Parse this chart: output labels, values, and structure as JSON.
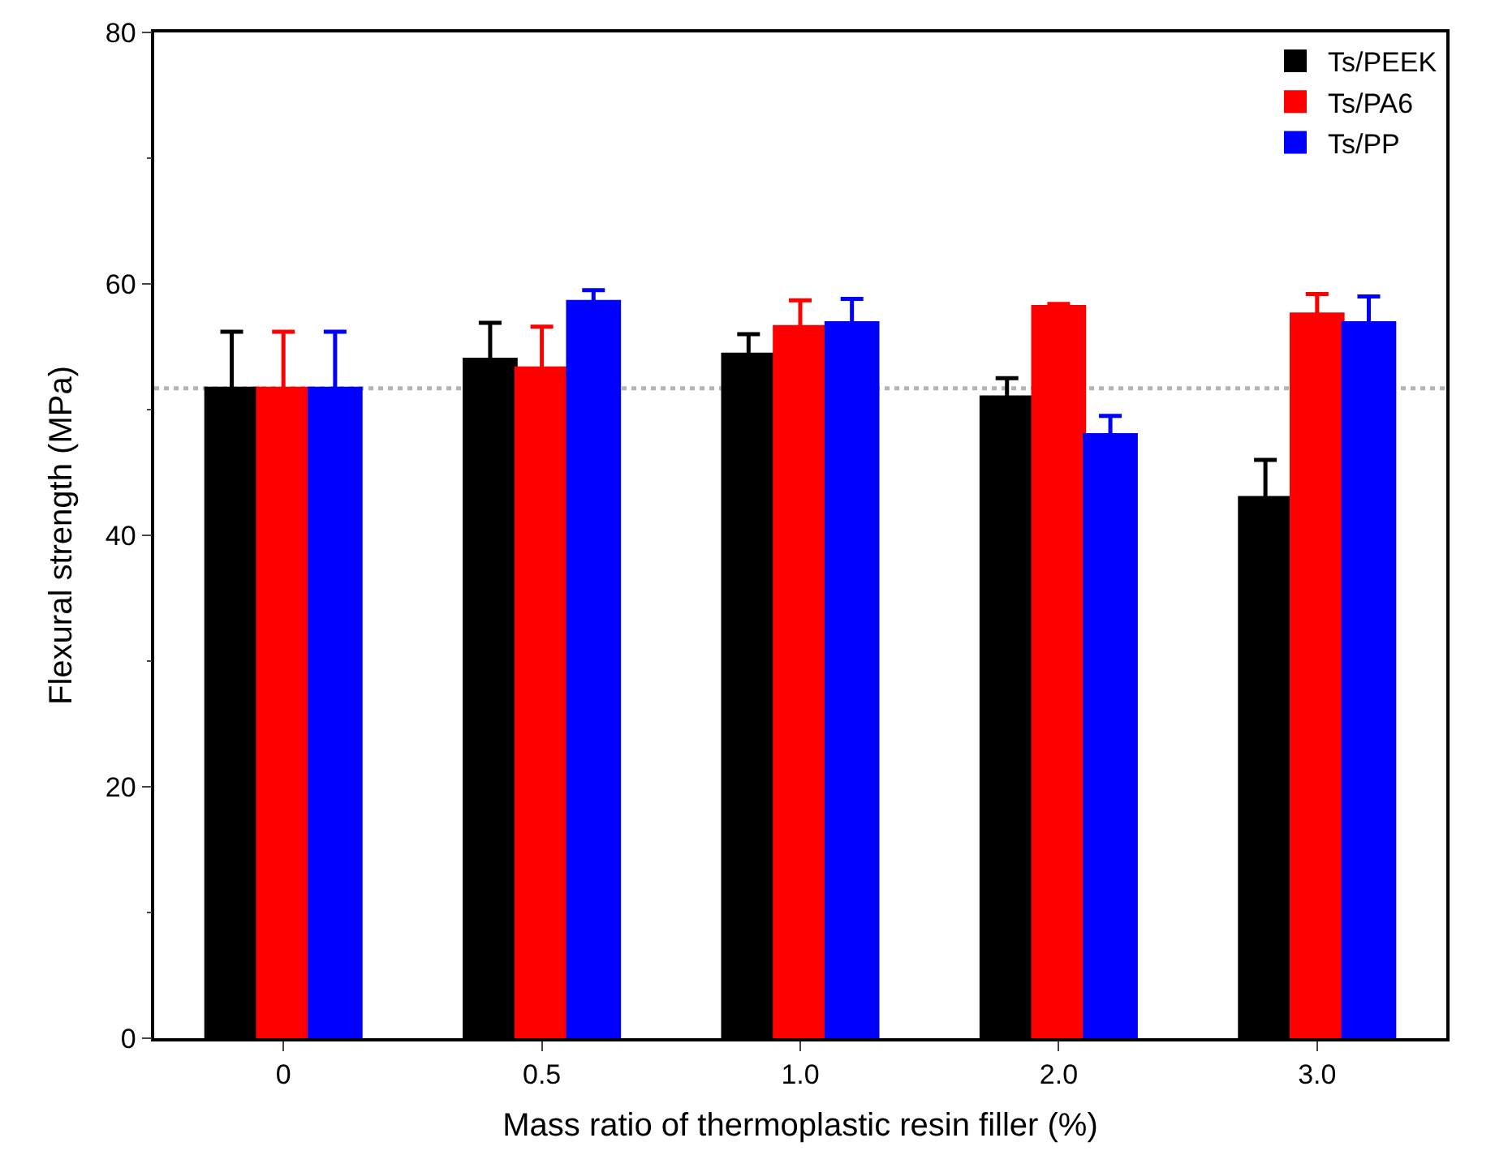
{
  "chart_data": {
    "type": "bar",
    "xlabel": "Mass ratio of thermoplastic resin filler (%)",
    "ylabel": "Flexural strength (MPa)",
    "categories": [
      "0",
      "0.5",
      "1.0",
      "2.0",
      "3.0"
    ],
    "series": [
      {
        "name": "Ts/PEEK",
        "color": "#000000",
        "values": [
          51.7,
          54.0,
          54.4,
          51.0,
          43.0
        ],
        "errors": [
          4.5,
          2.9,
          1.6,
          1.5,
          3.0
        ]
      },
      {
        "name": "Ts/PA6",
        "color": "#ff0000",
        "values": [
          51.7,
          53.3,
          56.6,
          58.2,
          57.6
        ],
        "errors": [
          4.5,
          3.3,
          2.1,
          0.2,
          1.6
        ]
      },
      {
        "name": "Ts/PP",
        "color": "#0000ff",
        "values": [
          51.7,
          58.6,
          56.9,
          48.0,
          56.9
        ],
        "errors": [
          4.5,
          0.9,
          1.9,
          1.5,
          2.1
        ]
      }
    ],
    "ylim": [
      0,
      80
    ],
    "yticks": [
      0,
      20,
      40,
      60,
      80
    ],
    "ref_lines": [
      {
        "axis": "y",
        "value": 51.7,
        "label": null,
        "color": "#b4b4b4",
        "line_style": "dotted"
      }
    ],
    "legend": "top right"
  }
}
